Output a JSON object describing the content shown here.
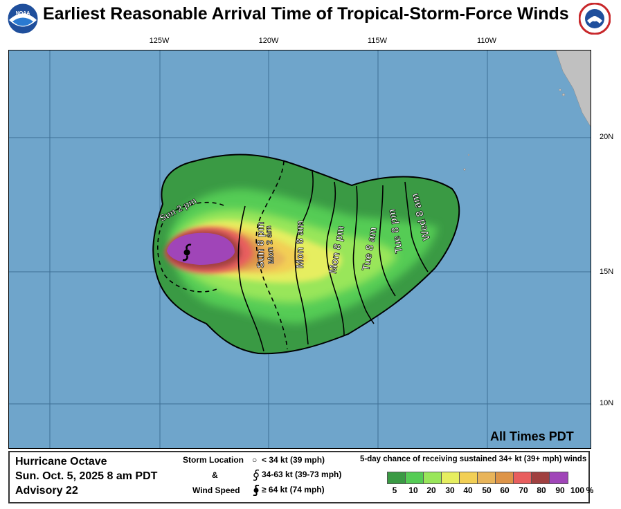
{
  "title": "Earliest Reasonable Arrival Time of Tropical-Storm-Force Winds",
  "logos": {
    "left": "noaa-logo",
    "right": "national-weather-service-logo"
  },
  "longitude_labels": [
    "125W",
    "120W",
    "115W",
    "110W"
  ],
  "latitude_labels": [
    "20N",
    "15N",
    "10N"
  ],
  "arrival_labels": [
    "Sun 2 pm",
    "Sun 8 pm",
    "Mon 2 am",
    "Mon 8 am",
    "Mon 8 pm",
    "Tue 8 am",
    "Tue 8 pm",
    "Wed 8 am"
  ],
  "time_zone_note": "All Times PDT",
  "storm": {
    "name": "Hurricane Octave",
    "datetime": "Sun. Oct. 5, 2025  8 am PDT",
    "advisory": "Advisory 22"
  },
  "storm_legend": {
    "heading_1": "Storm Location",
    "heading_amp": "&",
    "heading_2": "Wind Speed",
    "items": [
      {
        "icon": "circle-icon",
        "label": "< 34 kt (39 mph)"
      },
      {
        "icon": "tropical-storm-icon",
        "label": "34-63 kt (39-73 mph)"
      },
      {
        "icon": "hurricane-icon",
        "label": "≥ 64 kt (74 mph)"
      }
    ]
  },
  "probability_legend": {
    "title": "5-day chance of receiving sustained 34+ kt (39+ mph) winds",
    "ticks": [
      "5",
      "10",
      "20",
      "30",
      "40",
      "50",
      "60",
      "70",
      "80",
      "90",
      "100",
      "%"
    ],
    "colors": [
      "#3a9a44",
      "#55cc55",
      "#99e65a",
      "#e6ee60",
      "#f2cf55",
      "#e8b45a",
      "#dd9448",
      "#e85e5e",
      "#a04040",
      "#a045b8"
    ]
  },
  "colors": {
    "ocean": "#6fa5cb",
    "land": "#c0c0c0",
    "contour": "#000000"
  }
}
